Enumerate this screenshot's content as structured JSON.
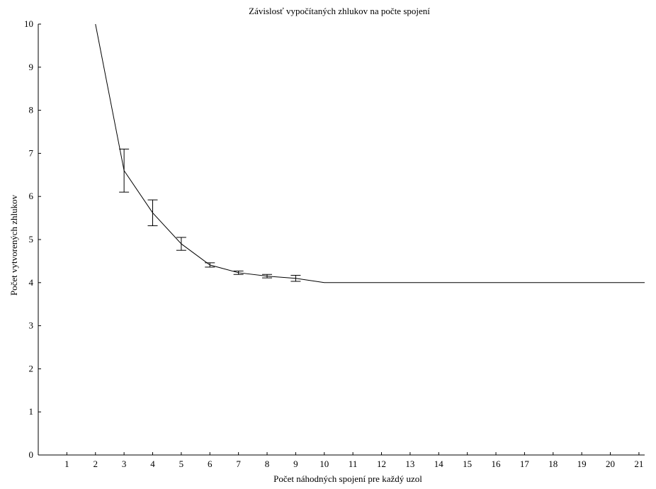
{
  "chart_data": {
    "type": "line",
    "title": "Závislosť vypočítaných zhlukov na počte spojení",
    "xlabel": "Počet náhodných spojení pre každý uzol",
    "ylabel": "Počet vytvorených zhlukov",
    "xlim": [
      0,
      21.2
    ],
    "ylim": [
      0,
      10
    ],
    "xticks": [
      1,
      2,
      3,
      4,
      5,
      6,
      7,
      8,
      9,
      10,
      11,
      12,
      13,
      14,
      15,
      16,
      17,
      18,
      19,
      20,
      21
    ],
    "yticks": [
      0,
      1,
      2,
      3,
      4,
      5,
      6,
      7,
      8,
      9,
      10
    ],
    "grid": false,
    "series": [
      {
        "x": [
          2,
          3,
          4,
          5,
          6,
          7,
          8,
          9,
          10,
          11,
          12,
          13,
          14,
          15,
          16,
          17,
          18,
          19,
          20,
          21.2
        ],
        "values": [
          10,
          6.6,
          5.62,
          4.9,
          4.41,
          4.23,
          4.15,
          4.1,
          4.0,
          4.0,
          4.0,
          4.0,
          4.0,
          4.0,
          4.0,
          4.0,
          4.0,
          4.0,
          4.0,
          4.0
        ],
        "error": [
          0,
          0.5,
          0.3,
          0.15,
          0.05,
          0.04,
          0.04,
          0.07,
          0,
          0,
          0,
          0,
          0,
          0,
          0,
          0,
          0,
          0,
          0,
          0
        ]
      }
    ],
    "colors": {
      "line": "#000000",
      "axes": "#000000",
      "background": "#ffffff"
    }
  }
}
